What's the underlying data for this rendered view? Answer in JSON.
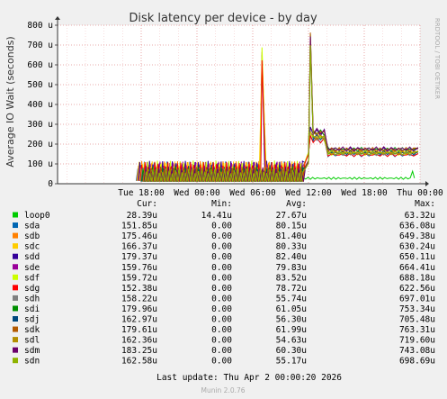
{
  "chart_data": {
    "type": "line",
    "title": "Disk latency per device - by day",
    "ylabel": "Average IO Wait (seconds)",
    "side_label": "RRDTOOL / TOBI OETIKER",
    "y_ticks": [
      "0",
      "100 u",
      "200 u",
      "300 u",
      "400 u",
      "500 u",
      "600 u",
      "700 u",
      "800 u"
    ],
    "ylim": [
      0,
      800
    ],
    "x_ticks": [
      "Tue 18:00",
      "Wed 00:00",
      "Wed 06:00",
      "Wed 12:00",
      "Wed 18:00",
      "Thu 00:00"
    ],
    "xlim_hours": [
      -9,
      30
    ],
    "x_tick_hours": [
      0,
      6,
      12,
      18,
      24,
      30
    ],
    "series_colors": {
      "loop0": "#00cc00",
      "sda": "#0066b3",
      "sdb": "#ff8000",
      "sdc": "#ffcc00",
      "sdd": "#330099",
      "sde": "#990099",
      "sdf": "#ccff00",
      "sdg": "#ff0000",
      "sdh": "#808080",
      "sdi": "#008f00",
      "sdj": "#00487d",
      "sdk": "#b35a00",
      "sdl": "#b38f00",
      "sdm": "#6b006b",
      "sdn": "#8fb300"
    },
    "legend_headers": {
      "cur": "Cur:",
      "min": "Min:",
      "avg": "Avg:",
      "max": "Max:"
    },
    "legend": [
      {
        "name": "loop0",
        "color": "#00cc00",
        "cur": "28.39u",
        "min": "14.41u",
        "avg": "27.67u",
        "max": "63.32u"
      },
      {
        "name": "sda",
        "color": "#0066b3",
        "cur": "151.85u",
        "min": "0.00",
        "avg": "80.15u",
        "max": "636.08u"
      },
      {
        "name": "sdb",
        "color": "#ff8000",
        "cur": "175.46u",
        "min": "0.00",
        "avg": "81.40u",
        "max": "649.38u"
      },
      {
        "name": "sdc",
        "color": "#ffcc00",
        "cur": "166.37u",
        "min": "0.00",
        "avg": "80.33u",
        "max": "630.24u"
      },
      {
        "name": "sdd",
        "color": "#330099",
        "cur": "179.37u",
        "min": "0.00",
        "avg": "82.40u",
        "max": "650.11u"
      },
      {
        "name": "sde",
        "color": "#990099",
        "cur": "159.76u",
        "min": "0.00",
        "avg": "79.83u",
        "max": "664.41u"
      },
      {
        "name": "sdf",
        "color": "#ccff00",
        "cur": "159.72u",
        "min": "0.00",
        "avg": "83.52u",
        "max": "688.18u"
      },
      {
        "name": "sdg",
        "color": "#ff0000",
        "cur": "152.38u",
        "min": "0.00",
        "avg": "78.72u",
        "max": "622.56u"
      },
      {
        "name": "sdh",
        "color": "#808080",
        "cur": "158.22u",
        "min": "0.00",
        "avg": "55.74u",
        "max": "697.01u"
      },
      {
        "name": "sdi",
        "color": "#008f00",
        "cur": "179.96u",
        "min": "0.00",
        "avg": "61.05u",
        "max": "753.34u"
      },
      {
        "name": "sdj",
        "color": "#00487d",
        "cur": "162.97u",
        "min": "0.00",
        "avg": "56.30u",
        "max": "705.48u"
      },
      {
        "name": "sdk",
        "color": "#b35a00",
        "cur": "179.61u",
        "min": "0.00",
        "avg": "61.99u",
        "max": "763.31u"
      },
      {
        "name": "sdl",
        "color": "#b38f00",
        "cur": "162.36u",
        "min": "0.00",
        "avg": "54.63u",
        "max": "719.60u"
      },
      {
        "name": "sdm",
        "color": "#6b006b",
        "cur": "183.25u",
        "min": "0.00",
        "avg": "60.30u",
        "max": "743.08u"
      },
      {
        "name": "sdn",
        "color": "#8fb300",
        "cur": "162.58u",
        "min": "0.00",
        "avg": "55.17u",
        "max": "698.69u"
      }
    ],
    "last_update": "Last update: Thu Apr  2 00:00:20 2026",
    "footer": "Munin 2.0.76"
  }
}
